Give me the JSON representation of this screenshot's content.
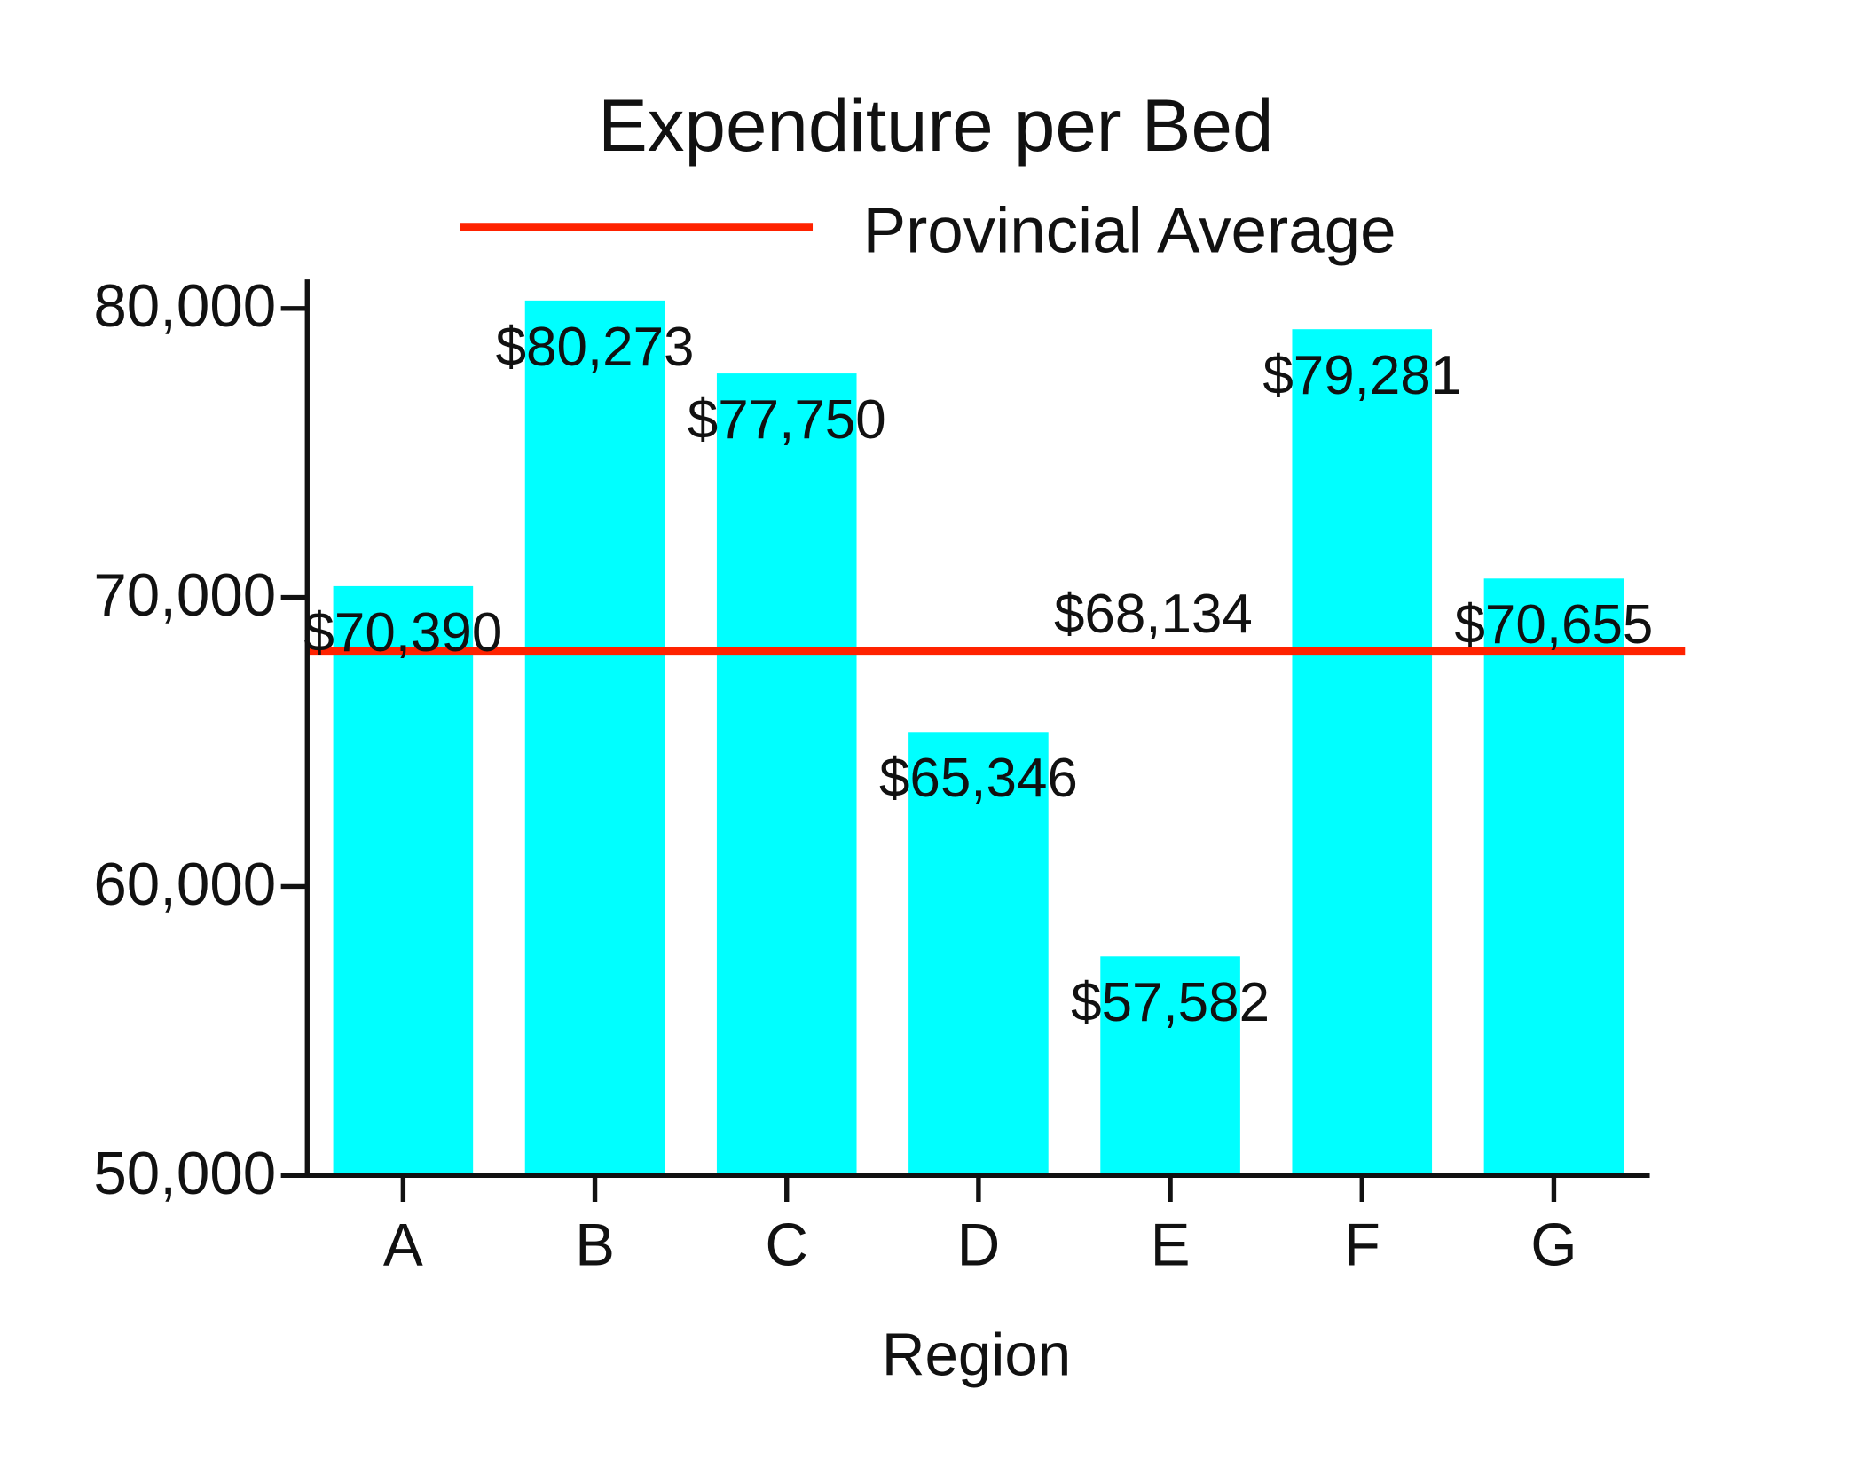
{
  "chart_data": {
    "type": "bar",
    "title": "Expenditure per Bed",
    "x_label": "Region",
    "categories": [
      "A",
      "B",
      "C",
      "D",
      "E",
      "F",
      "G"
    ],
    "values": [
      70390,
      80273,
      77750,
      65346,
      57582,
      79281,
      70655
    ],
    "value_labels": [
      "$70,390",
      "$80,273",
      "$77,750",
      "$65,346",
      "$57,582",
      "$79,281",
      "$70,655"
    ],
    "color": "#00ffff",
    "ylim": [
      50000,
      81000
    ],
    "yticks": [
      {
        "value": 50000,
        "label": "50,000"
      },
      {
        "value": 60000,
        "label": "60,000"
      },
      {
        "value": 70000,
        "label": "70,000"
      },
      {
        "value": 80000,
        "label": "80,000"
      }
    ],
    "reference_line": {
      "name": "Provincial Average",
      "value": 68134,
      "value_label": "$68,134",
      "color": "#ff2200"
    }
  }
}
